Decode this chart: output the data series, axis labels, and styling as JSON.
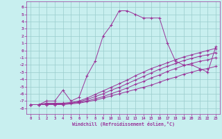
{
  "bg_color": "#c8efef",
  "line_color": "#993399",
  "grid_color": "#99cccc",
  "x_ticks": [
    0,
    1,
    2,
    3,
    4,
    5,
    6,
    7,
    8,
    9,
    10,
    11,
    12,
    13,
    14,
    15,
    16,
    17,
    18,
    19,
    20,
    21,
    22,
    23
  ],
  "y_ticks": [
    6,
    5,
    4,
    3,
    2,
    1,
    0,
    -1,
    -2,
    -3,
    -4,
    -5,
    -6,
    -7,
    -8
  ],
  "ylim": [
    -8.8,
    6.8
  ],
  "xlim": [
    -0.5,
    23.5
  ],
  "xlabel": "Windchill (Refroidissement éolien,°C)",
  "line1_x": [
    0,
    1,
    2,
    3,
    4,
    5,
    6,
    7,
    8,
    9,
    10,
    11,
    12,
    13,
    14,
    15,
    16,
    17,
    18,
    19,
    20,
    21,
    22,
    23
  ],
  "line1_y": [
    -7.5,
    -7.5,
    -7.0,
    -7.0,
    -5.5,
    -7.0,
    -6.5,
    -3.5,
    -1.5,
    2.0,
    3.5,
    5.5,
    5.5,
    5.0,
    4.5,
    4.5,
    4.5,
    1.0,
    -1.5,
    -2.0,
    -2.0,
    -2.5,
    -3.0,
    0.5
  ],
  "line2_x": [
    0,
    1,
    2,
    3,
    4,
    5,
    6,
    7,
    8,
    9,
    10,
    11,
    12,
    13,
    14,
    15,
    16,
    17,
    18,
    19,
    20,
    21,
    22,
    23
  ],
  "line2_y": [
    -7.5,
    -7.5,
    -7.3,
    -7.3,
    -7.3,
    -7.2,
    -7.0,
    -6.6,
    -6.1,
    -5.6,
    -5.1,
    -4.6,
    -4.1,
    -3.5,
    -3.0,
    -2.5,
    -2.1,
    -1.7,
    -1.3,
    -0.9,
    -0.6,
    -0.3,
    0.0,
    0.3
  ],
  "line3_x": [
    0,
    1,
    2,
    3,
    4,
    5,
    6,
    7,
    8,
    9,
    10,
    11,
    12,
    13,
    14,
    15,
    16,
    17,
    18,
    19,
    20,
    21,
    22,
    23
  ],
  "line3_y": [
    -7.5,
    -7.5,
    -7.4,
    -7.4,
    -7.4,
    -7.3,
    -7.1,
    -6.8,
    -6.4,
    -6.0,
    -5.5,
    -5.1,
    -4.6,
    -4.1,
    -3.6,
    -3.1,
    -2.6,
    -2.2,
    -1.8,
    -1.4,
    -1.1,
    -0.8,
    -0.6,
    -0.3
  ],
  "line4_x": [
    0,
    1,
    2,
    3,
    4,
    5,
    6,
    7,
    8,
    9,
    10,
    11,
    12,
    13,
    14,
    15,
    16,
    17,
    18,
    19,
    20,
    21,
    22,
    23
  ],
  "line4_y": [
    -7.5,
    -7.5,
    -7.5,
    -7.5,
    -7.4,
    -7.3,
    -7.2,
    -7.0,
    -6.7,
    -6.4,
    -6.0,
    -5.6,
    -5.2,
    -4.7,
    -4.3,
    -3.8,
    -3.4,
    -2.9,
    -2.5,
    -2.1,
    -1.8,
    -1.5,
    -1.3,
    -1.0
  ],
  "line5_x": [
    0,
    1,
    2,
    3,
    4,
    5,
    6,
    7,
    8,
    9,
    10,
    11,
    12,
    13,
    14,
    15,
    16,
    17,
    18,
    19,
    20,
    21,
    22,
    23
  ],
  "line5_y": [
    -7.5,
    -7.5,
    -7.5,
    -7.5,
    -7.5,
    -7.4,
    -7.3,
    -7.1,
    -6.9,
    -6.6,
    -6.3,
    -6.0,
    -5.7,
    -5.4,
    -5.1,
    -4.8,
    -4.4,
    -4.0,
    -3.7,
    -3.3,
    -3.0,
    -2.7,
    -2.5,
    -2.2
  ]
}
